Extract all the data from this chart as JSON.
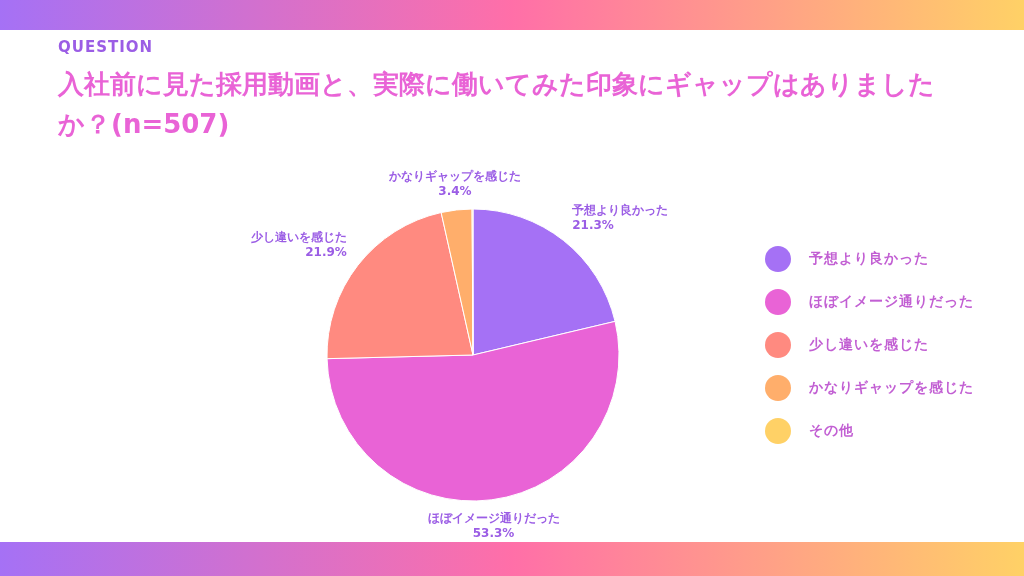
{
  "chart_data": {
    "type": "pie",
    "subtitle": "QUESTION",
    "title": "入社前に見た採用動画と、実際に働いてみた印象にギャップはありましたか？(n=507)",
    "categories": [
      "予想より良かった",
      "ほぼイメージ通りだった",
      "少し違いを感じた",
      "かなりギャップを感じた",
      "その他"
    ],
    "values": [
      21.3,
      53.3,
      21.9,
      3.4,
      0.1
    ],
    "colors": [
      "#a571f5",
      "#e963d6",
      "#ff8a80",
      "#ffae6b",
      "#ffd166"
    ],
    "value_labels": [
      "21.3%",
      "53.3%",
      "21.9%",
      "3.4%",
      null
    ],
    "legend": "right"
  }
}
